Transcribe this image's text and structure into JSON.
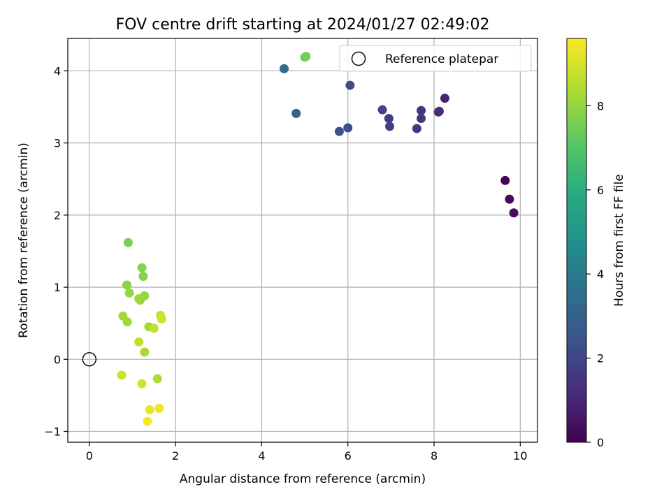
{
  "chart_data": {
    "type": "scatter",
    "title": "FOV centre drift starting at 2024/01/27 02:49:02",
    "xlabel": "Angular distance from reference (arcmin)",
    "ylabel": "Rotation from reference (arcmin)",
    "xlim": [
      -0.5,
      10.4
    ],
    "ylim": [
      -1.15,
      4.45
    ],
    "xticks": [
      0,
      2,
      4,
      6,
      8,
      10
    ],
    "yticks": [
      -1,
      0,
      1,
      2,
      3,
      4
    ],
    "grid": true,
    "legend": {
      "placement": "top-right",
      "entries": [
        "Reference platepar"
      ]
    },
    "reference_point": {
      "name": "Reference platepar",
      "x": 0,
      "y": 0,
      "marker": "hollow-circle"
    },
    "colorbar": {
      "label": "Hours from first FF file",
      "range": [
        0,
        9.6
      ],
      "ticks": [
        0,
        2,
        4,
        6,
        8
      ],
      "colormap": "viridis"
    },
    "points": [
      {
        "x": 9.65,
        "y": 2.48,
        "c": 0.1
      },
      {
        "x": 9.75,
        "y": 2.22,
        "c": 0.2
      },
      {
        "x": 9.85,
        "y": 2.03,
        "c": 0.3
      },
      {
        "x": 8.25,
        "y": 3.62,
        "c": 0.9
      },
      {
        "x": 8.1,
        "y": 3.43,
        "c": 1.1
      },
      {
        "x": 8.12,
        "y": 3.44,
        "c": 1.2
      },
      {
        "x": 7.7,
        "y": 3.45,
        "c": 1.4
      },
      {
        "x": 7.7,
        "y": 3.34,
        "c": 1.5
      },
      {
        "x": 7.6,
        "y": 3.2,
        "c": 1.6
      },
      {
        "x": 6.95,
        "y": 3.34,
        "c": 1.7
      },
      {
        "x": 6.97,
        "y": 3.23,
        "c": 1.8
      },
      {
        "x": 6.8,
        "y": 3.46,
        "c": 1.9
      },
      {
        "x": 6.05,
        "y": 3.8,
        "c": 2.2
      },
      {
        "x": 6.0,
        "y": 3.21,
        "c": 2.3
      },
      {
        "x": 5.8,
        "y": 3.16,
        "c": 2.4
      },
      {
        "x": 4.8,
        "y": 3.41,
        "c": 3.0
      },
      {
        "x": 4.52,
        "y": 4.03,
        "c": 3.3
      },
      {
        "x": 5.0,
        "y": 4.19,
        "c": 7.4
      },
      {
        "x": 5.03,
        "y": 4.2,
        "c": 7.5
      },
      {
        "x": 0.9,
        "y": 1.62,
        "c": 7.6
      },
      {
        "x": 1.22,
        "y": 1.27,
        "c": 7.8
      },
      {
        "x": 1.25,
        "y": 1.15,
        "c": 7.8
      },
      {
        "x": 0.87,
        "y": 1.03,
        "c": 7.9
      },
      {
        "x": 0.93,
        "y": 0.92,
        "c": 8.0
      },
      {
        "x": 1.28,
        "y": 0.88,
        "c": 8.0
      },
      {
        "x": 1.15,
        "y": 0.84,
        "c": 8.1
      },
      {
        "x": 1.18,
        "y": 0.82,
        "c": 8.1
      },
      {
        "x": 0.78,
        "y": 0.6,
        "c": 8.2
      },
      {
        "x": 0.88,
        "y": 0.52,
        "c": 8.2
      },
      {
        "x": 1.38,
        "y": 0.45,
        "c": 8.3
      },
      {
        "x": 1.28,
        "y": 0.1,
        "c": 8.3
      },
      {
        "x": 1.58,
        "y": -0.27,
        "c": 8.4
      },
      {
        "x": 1.5,
        "y": 0.43,
        "c": 8.7
      },
      {
        "x": 1.65,
        "y": 0.61,
        "c": 8.8
      },
      {
        "x": 1.68,
        "y": 0.56,
        "c": 8.9
      },
      {
        "x": 1.15,
        "y": 0.24,
        "c": 8.7
      },
      {
        "x": 0.75,
        "y": -0.22,
        "c": 8.9
      },
      {
        "x": 1.22,
        "y": -0.34,
        "c": 9.0
      },
      {
        "x": 1.4,
        "y": -0.7,
        "c": 9.3
      },
      {
        "x": 1.62,
        "y": -0.68,
        "c": 9.4
      },
      {
        "x": 1.35,
        "y": -0.86,
        "c": 9.5
      }
    ]
  }
}
